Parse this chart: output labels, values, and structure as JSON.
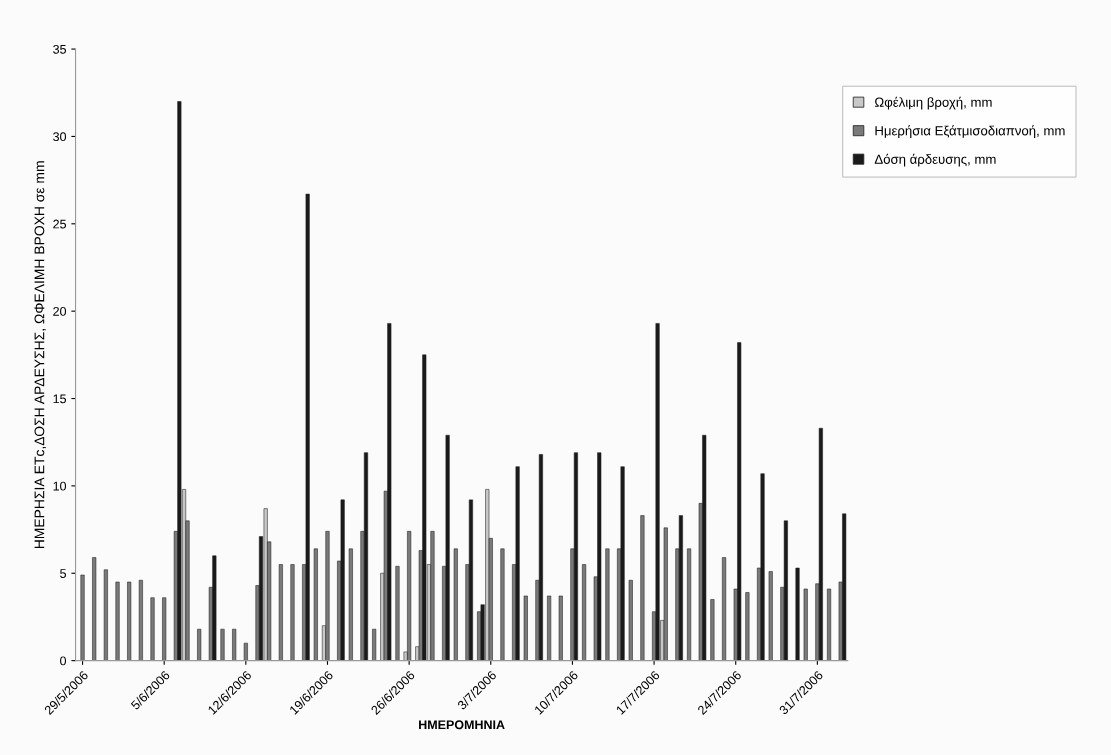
{
  "chart_data": {
    "type": "bar",
    "xlabel": "ΗΜΕΡΟΜΗΝΙΑ",
    "ylabel": "ΗΜΕΡΗΣΙΑ ΕΤc,ΔΟΣΗ ΑΡΔΕΥΣΗΣ, ΩΦΕΛΙΜΗ ΒΡΟΧΗ σε mm",
    "categories": [
      "29/5/2006",
      null,
      null,
      null,
      null,
      null,
      null,
      "5/6/2006",
      null,
      null,
      null,
      null,
      null,
      null,
      "12/6/2006",
      null,
      null,
      null,
      null,
      null,
      null,
      "19/6/2006",
      null,
      null,
      null,
      null,
      null,
      null,
      "26/6/2006",
      null,
      null,
      null,
      null,
      null,
      null,
      "3/7/2006",
      null,
      null,
      null,
      null,
      null,
      null,
      "10/7/2006",
      null,
      null,
      null,
      null,
      null,
      null,
      "17/7/2006",
      null,
      null,
      null,
      null,
      null,
      null,
      "24/7/2006",
      null,
      null,
      null,
      null,
      null,
      null,
      "31/7/2006",
      null,
      null
    ],
    "series": [
      {
        "name": "Ωφέλιμη βροχή, mm",
        "color": "#c8c8c8",
        "values": [
          null,
          null,
          null,
          null,
          null,
          null,
          null,
          null,
          null,
          9.8,
          null,
          null,
          null,
          null,
          null,
          null,
          8.7,
          null,
          null,
          null,
          null,
          2.0,
          null,
          null,
          null,
          null,
          5.0,
          null,
          0.5,
          0.8,
          5.5,
          null,
          null,
          null,
          null,
          9.8,
          null,
          null,
          null,
          null,
          null,
          null,
          null,
          null,
          null,
          null,
          null,
          null,
          null,
          null,
          2.3,
          null,
          null,
          null,
          null,
          null,
          null,
          null,
          null,
          null,
          null,
          null,
          null,
          null,
          null,
          null
        ]
      },
      {
        "name": "Ημερήσια Εξάτμισοδιαπνοή, mm",
        "color": "#7a7a7a",
        "values": [
          4.9,
          5.9,
          5.2,
          4.5,
          4.5,
          4.6,
          3.6,
          3.6,
          7.4,
          8.0,
          1.8,
          4.2,
          1.8,
          1.8,
          1.0,
          4.3,
          6.8,
          5.5,
          5.5,
          5.5,
          6.4,
          7.4,
          5.7,
          6.4,
          7.4,
          1.8,
          9.7,
          5.4,
          7.4,
          6.3,
          7.4,
          5.4,
          6.4,
          5.5,
          2.8,
          7.0,
          6.4,
          5.5,
          3.7,
          4.6,
          3.7,
          3.7,
          6.4,
          5.5,
          4.8,
          6.4,
          6.4,
          4.6,
          8.3,
          2.8,
          7.6,
          6.4,
          6.4,
          9.0,
          3.5,
          5.9,
          4.1,
          3.9,
          5.3,
          5.1,
          4.2,
          null,
          4.1,
          4.4,
          4.1,
          4.5
        ]
      },
      {
        "name": "Δόση άρδευσης, mm",
        "color": "#1a1a1a",
        "values": [
          null,
          null,
          null,
          null,
          null,
          null,
          null,
          null,
          32.0,
          null,
          null,
          6.0,
          null,
          null,
          null,
          7.1,
          null,
          null,
          null,
          26.7,
          null,
          null,
          9.2,
          null,
          11.9,
          null,
          19.3,
          null,
          null,
          17.5,
          null,
          12.9,
          null,
          9.2,
          3.2,
          null,
          null,
          11.1,
          null,
          11.8,
          null,
          null,
          11.9,
          null,
          11.9,
          null,
          11.1,
          null,
          null,
          19.3,
          null,
          8.3,
          null,
          12.9,
          null,
          null,
          18.2,
          null,
          10.7,
          null,
          8.0,
          5.3,
          null,
          13.3,
          null,
          8.4
        ]
      }
    ],
    "ylim": [
      0,
      35
    ],
    "yticks": [
      0,
      5,
      10,
      15,
      20,
      25,
      30,
      35
    ],
    "grid": false,
    "legend": "right"
  }
}
